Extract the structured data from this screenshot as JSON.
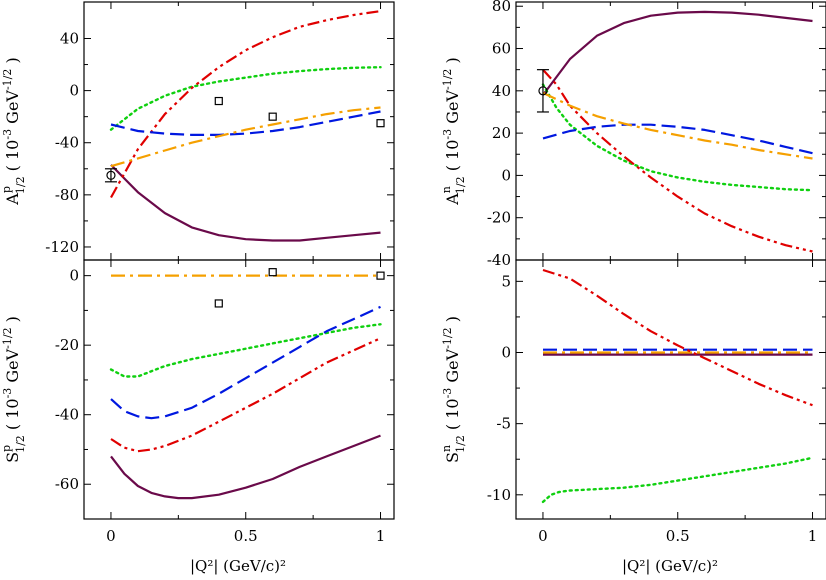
{
  "figure": {
    "xlabel_left": "|Q²| (GeV/c)²",
    "xlabel_right": "|Q²| (GeV/c)²",
    "colors": {
      "purple": "#6a0a4a",
      "green": "#10d010",
      "red": "#e00000",
      "blue": "#0018e0",
      "orange": "#f5a000"
    }
  },
  "chart_data": [
    {
      "id": "Ap",
      "type": "line",
      "ylabel": "A^p_1/2 ( 10^-3 GeV^-1/2 )",
      "ylabel_main": "A",
      "ylabel_sup": "p",
      "ylabel_sub": "1/2",
      "ylabel_unit": "( 10",
      "ylabel_unit_exp": "-3",
      "ylabel_gev": " GeV",
      "ylabel_gev_exp": "-1/2",
      "ylabel_close": " )",
      "xlim": [
        -0.1,
        1.05
      ],
      "ylim": [
        -130,
        68
      ],
      "yticks": [
        40,
        0,
        -40,
        -80,
        -120
      ],
      "yticklabels": [
        "40",
        "0",
        "-40",
        "-80",
        "-120"
      ],
      "xticks": [
        0,
        0.5,
        1
      ],
      "xticklabels": [],
      "series": [
        {
          "name": "purple-solid",
          "color": "purple",
          "dash": "none",
          "x": [
            0,
            0.1,
            0.2,
            0.3,
            0.4,
            0.5,
            0.6,
            0.7,
            0.8,
            0.9,
            1.0
          ],
          "y": [
            -57,
            -78,
            -94,
            -105,
            -111,
            -114,
            -115,
            -115,
            -113,
            -111,
            -109
          ]
        },
        {
          "name": "green-dotted",
          "color": "green",
          "dash": "dot",
          "x": [
            0,
            0.1,
            0.2,
            0.3,
            0.4,
            0.5,
            0.6,
            0.7,
            0.8,
            0.9,
            1.0
          ],
          "y": [
            -30,
            -14,
            -4,
            3,
            7,
            10,
            13,
            15,
            16.5,
            17.5,
            18
          ]
        },
        {
          "name": "red-dashdotdot",
          "color": "red",
          "dash": "dashdotdot",
          "x": [
            0,
            0.1,
            0.2,
            0.3,
            0.4,
            0.5,
            0.6,
            0.7,
            0.8,
            0.9,
            1.0
          ],
          "y": [
            -82,
            -45,
            -18,
            2,
            18,
            31,
            41,
            49,
            54,
            58,
            61
          ]
        },
        {
          "name": "blue-dashed",
          "color": "blue",
          "dash": "dash",
          "x": [
            0,
            0.1,
            0.2,
            0.3,
            0.4,
            0.5,
            0.6,
            0.7,
            0.8,
            0.9,
            1.0
          ],
          "y": [
            -26,
            -31,
            -33,
            -34,
            -34,
            -33,
            -31,
            -28,
            -24,
            -20,
            -16
          ]
        },
        {
          "name": "orange-dashdot",
          "color": "orange",
          "dash": "dashdot",
          "x": [
            0,
            0.1,
            0.2,
            0.3,
            0.4,
            0.5,
            0.6,
            0.7,
            0.8,
            0.9,
            1.0
          ],
          "y": [
            -58,
            -52,
            -46,
            -40,
            -35,
            -30,
            -26,
            -22,
            -18,
            -15,
            -13
          ]
        }
      ],
      "markers": [
        {
          "shape": "circle",
          "x": 0,
          "y": -65,
          "err": 5
        },
        {
          "shape": "square",
          "x": 0.4,
          "y": -8
        },
        {
          "shape": "square",
          "x": 0.6,
          "y": -20
        },
        {
          "shape": "square",
          "x": 1.0,
          "y": -25
        }
      ]
    },
    {
      "id": "An",
      "type": "line",
      "ylabel": "A^n_1/2 ( 10^-3 GeV^-1/2 )",
      "ylabel_main": "A",
      "ylabel_sup": "n",
      "ylabel_sub": "1/2",
      "ylabel_unit": "( 10",
      "ylabel_unit_exp": "-3",
      "ylabel_gev": " GeV",
      "ylabel_gev_exp": "-1/2",
      "ylabel_close": " )",
      "xlim": [
        -0.1,
        1.05
      ],
      "ylim": [
        -40,
        82
      ],
      "yticks": [
        80,
        60,
        40,
        20,
        0,
        -20,
        -40
      ],
      "yticklabels": [
        "80",
        "60",
        "40",
        "20",
        "0",
        "-20",
        "-40"
      ],
      "xticks": [
        0,
        0.5,
        1
      ],
      "xticklabels": [],
      "series": [
        {
          "name": "purple-solid",
          "color": "purple",
          "dash": "none",
          "x": [
            0,
            0.1,
            0.2,
            0.3,
            0.4,
            0.5,
            0.6,
            0.7,
            0.8,
            0.9,
            1.0
          ],
          "y": [
            38,
            55,
            66,
            72,
            75.5,
            77,
            77.3,
            77,
            76,
            74.5,
            73
          ]
        },
        {
          "name": "green-dotted",
          "color": "green",
          "dash": "dot",
          "x": [
            0,
            0.05,
            0.1,
            0.2,
            0.3,
            0.4,
            0.5,
            0.6,
            0.7,
            0.8,
            0.9,
            1.0
          ],
          "y": [
            43,
            32,
            24,
            14,
            7,
            2,
            -1,
            -3,
            -4.5,
            -5.5,
            -6.5,
            -7
          ]
        },
        {
          "name": "red-dashdotdot",
          "color": "red",
          "dash": "dashdotdot",
          "x": [
            0,
            0.05,
            0.1,
            0.2,
            0.3,
            0.4,
            0.5,
            0.6,
            0.7,
            0.8,
            0.9,
            1.0
          ],
          "y": [
            50,
            43,
            33,
            20,
            9,
            -1,
            -10,
            -18,
            -24,
            -29,
            -33,
            -36
          ]
        },
        {
          "name": "blue-dashed",
          "color": "blue",
          "dash": "dash",
          "x": [
            0,
            0.1,
            0.2,
            0.3,
            0.4,
            0.5,
            0.6,
            0.7,
            0.8,
            0.9,
            1.0
          ],
          "y": [
            17.5,
            21,
            23,
            24,
            24,
            23,
            21.5,
            19,
            16.5,
            13.5,
            10.5
          ]
        },
        {
          "name": "orange-dashdot",
          "color": "orange",
          "dash": "dashdot",
          "x": [
            0,
            0.1,
            0.2,
            0.3,
            0.4,
            0.5,
            0.6,
            0.7,
            0.8,
            0.9,
            1.0
          ],
          "y": [
            39,
            33,
            28,
            24.5,
            21.5,
            19,
            16.5,
            14.5,
            12,
            10,
            8
          ]
        }
      ],
      "markers": [
        {
          "shape": "circle",
          "x": 0,
          "y": 40,
          "err": 10
        }
      ]
    },
    {
      "id": "Sp",
      "type": "line",
      "ylabel": "S^p_1/2 ( 10^-3 GeV^-1/2 )",
      "ylabel_main": "S",
      "ylabel_sup": "p",
      "ylabel_sub": "1/2",
      "ylabel_unit": "( 10",
      "ylabel_unit_exp": "-3",
      "ylabel_gev": " GeV",
      "ylabel_gev_exp": "-1/2",
      "ylabel_close": " )",
      "xlim": [
        -0.1,
        1.05
      ],
      "ylim": [
        -70,
        4.5
      ],
      "yticks": [
        0,
        -20,
        -40,
        -60
      ],
      "yticklabels": [
        "0",
        "-20",
        "-40",
        "-60"
      ],
      "xticks": [
        0,
        0.5,
        1
      ],
      "xticklabels": [
        "0",
        "0.5",
        "1"
      ],
      "series": [
        {
          "name": "purple-solid",
          "color": "purple",
          "dash": "none",
          "x": [
            0,
            0.05,
            0.1,
            0.15,
            0.2,
            0.25,
            0.3,
            0.4,
            0.5,
            0.6,
            0.7,
            0.8,
            0.9,
            1.0
          ],
          "y": [
            -52,
            -57,
            -60.5,
            -62.5,
            -63.5,
            -64,
            -64,
            -63,
            -61,
            -58.5,
            -55,
            -52,
            -49,
            -46
          ]
        },
        {
          "name": "green-dotted",
          "color": "green",
          "dash": "dot",
          "x": [
            0,
            0.05,
            0.1,
            0.15,
            0.2,
            0.3,
            0.4,
            0.5,
            0.6,
            0.7,
            0.8,
            0.9,
            1.0
          ],
          "y": [
            -27,
            -29,
            -29,
            -27.5,
            -26,
            -24,
            -22.5,
            -21,
            -19.5,
            -18,
            -16.5,
            -15,
            -14
          ]
        },
        {
          "name": "red-dashdotdot",
          "color": "red",
          "dash": "dashdotdot",
          "x": [
            0,
            0.05,
            0.1,
            0.15,
            0.2,
            0.3,
            0.4,
            0.5,
            0.6,
            0.7,
            0.8,
            0.9,
            1.0
          ],
          "y": [
            -47,
            -49.5,
            -50.5,
            -50,
            -49,
            -46,
            -42,
            -38,
            -34,
            -29.5,
            -25,
            -21.5,
            -18
          ]
        },
        {
          "name": "blue-dashed",
          "color": "blue",
          "dash": "dash",
          "x": [
            0,
            0.05,
            0.1,
            0.15,
            0.2,
            0.3,
            0.4,
            0.5,
            0.6,
            0.7,
            0.8,
            0.9,
            1.0
          ],
          "y": [
            -35.5,
            -39,
            -40.5,
            -41,
            -40.5,
            -38,
            -34,
            -29.5,
            -25,
            -20.5,
            -16,
            -12.5,
            -9
          ]
        },
        {
          "name": "orange-dashdot",
          "color": "orange",
          "dash": "dashdot",
          "x": [
            0,
            0.25,
            0.5,
            0.75,
            1.0
          ],
          "y": [
            0,
            0,
            0,
            0,
            0
          ]
        }
      ],
      "markers": [
        {
          "shape": "square",
          "x": 0.4,
          "y": -8
        },
        {
          "shape": "square",
          "x": 0.6,
          "y": 1
        },
        {
          "shape": "square",
          "x": 1.0,
          "y": 0
        }
      ]
    },
    {
      "id": "Sn",
      "type": "line",
      "ylabel": "S^n_1/2 ( 10^-3 GeV^-1/2 )",
      "ylabel_main": "S",
      "ylabel_sup": "n",
      "ylabel_sub": "1/2",
      "ylabel_unit": "( 10",
      "ylabel_unit_exp": "-3",
      "ylabel_gev": " GeV",
      "ylabel_gev_exp": "-1/2",
      "ylabel_close": " )",
      "xlim": [
        -0.1,
        1.05
      ],
      "ylim": [
        -11.7,
        6.5
      ],
      "yticks": [
        5,
        0,
        -5,
        -10
      ],
      "yticklabels": [
        "5",
        "0",
        "-5",
        "-10"
      ],
      "xticks": [
        0,
        0.5,
        1
      ],
      "xticklabels": [
        "0",
        "0.5",
        "1"
      ],
      "series": [
        {
          "name": "purple-solid",
          "color": "purple",
          "dash": "none",
          "x": [
            0,
            0.5,
            1.0
          ],
          "y": [
            -0.15,
            -0.15,
            -0.15
          ]
        },
        {
          "name": "orange-dashdot",
          "color": "orange",
          "dash": "dashdot",
          "x": [
            0,
            0.5,
            1.0
          ],
          "y": [
            0.0,
            0.0,
            0.0
          ]
        },
        {
          "name": "blue-dashed",
          "color": "blue",
          "dash": "dash",
          "x": [
            0,
            0.5,
            1.0
          ],
          "y": [
            0.2,
            0.2,
            0.2
          ]
        },
        {
          "name": "red-dashdotdot",
          "color": "red",
          "dash": "dashdotdot",
          "x": [
            0,
            0.1,
            0.2,
            0.3,
            0.4,
            0.5,
            0.6,
            0.7,
            0.8,
            0.9,
            1.0
          ],
          "y": [
            5.8,
            5.2,
            4.0,
            2.7,
            1.5,
            0.5,
            -0.4,
            -1.3,
            -2.2,
            -3.0,
            -3.7
          ]
        },
        {
          "name": "green-dotted",
          "color": "green",
          "dash": "dot",
          "x": [
            0,
            0.03,
            0.06,
            0.1,
            0.2,
            0.3,
            0.4,
            0.5,
            0.6,
            0.7,
            0.8,
            0.9,
            1.0
          ],
          "y": [
            -10.5,
            -10.0,
            -9.8,
            -9.7,
            -9.6,
            -9.5,
            -9.3,
            -9.0,
            -8.7,
            -8.4,
            -8.1,
            -7.8,
            -7.4
          ]
        }
      ],
      "markers": []
    }
  ]
}
